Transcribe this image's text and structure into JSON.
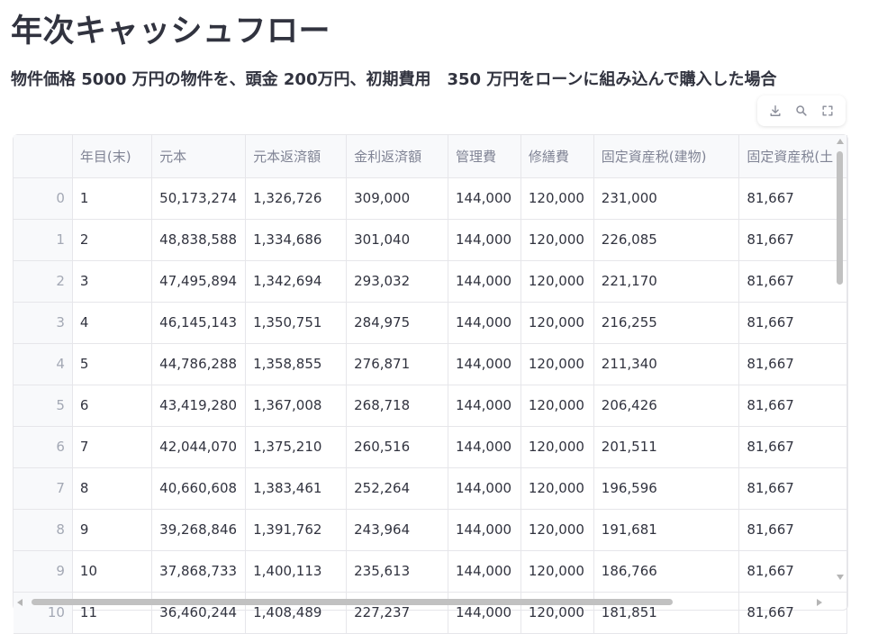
{
  "page": {
    "title": "年次キャッシュフロー",
    "subtitle": "物件価格 5000 万円の物件を、頭金 200万円、初期費用　350 万円をローンに組み込んで購入した場合"
  },
  "toolbar": {
    "icons": [
      "download-icon",
      "search-icon",
      "fullscreen-icon"
    ]
  },
  "table": {
    "columns": [
      "",
      "年目(末)",
      "元本",
      "元本返済額",
      "金利返済額",
      "管理費",
      "修繕費",
      "固定資産税(建物)",
      "固定資産税(土"
    ],
    "rows": [
      [
        "0",
        "1",
        "50,173,274",
        "1,326,726",
        "309,000",
        "144,000",
        "120,000",
        "231,000",
        "81,667"
      ],
      [
        "1",
        "2",
        "48,838,588",
        "1,334,686",
        "301,040",
        "144,000",
        "120,000",
        "226,085",
        "81,667"
      ],
      [
        "2",
        "3",
        "47,495,894",
        "1,342,694",
        "293,032",
        "144,000",
        "120,000",
        "221,170",
        "81,667"
      ],
      [
        "3",
        "4",
        "46,145,143",
        "1,350,751",
        "284,975",
        "144,000",
        "120,000",
        "216,255",
        "81,667"
      ],
      [
        "4",
        "5",
        "44,786,288",
        "1,358,855",
        "276,871",
        "144,000",
        "120,000",
        "211,340",
        "81,667"
      ],
      [
        "5",
        "6",
        "43,419,280",
        "1,367,008",
        "268,718",
        "144,000",
        "120,000",
        "206,426",
        "81,667"
      ],
      [
        "6",
        "7",
        "42,044,070",
        "1,375,210",
        "260,516",
        "144,000",
        "120,000",
        "201,511",
        "81,667"
      ],
      [
        "7",
        "8",
        "40,660,608",
        "1,383,461",
        "252,264",
        "144,000",
        "120,000",
        "196,596",
        "81,667"
      ],
      [
        "8",
        "9",
        "39,268,846",
        "1,391,762",
        "243,964",
        "144,000",
        "120,000",
        "191,681",
        "81,667"
      ],
      [
        "9",
        "10",
        "37,868,733",
        "1,400,113",
        "235,613",
        "144,000",
        "120,000",
        "186,766",
        "81,667"
      ],
      [
        "10",
        "11",
        "36,460,244",
        "1,408,489",
        "227,237",
        "144,000",
        "120,000",
        "181,851",
        "81,667"
      ]
    ]
  }
}
